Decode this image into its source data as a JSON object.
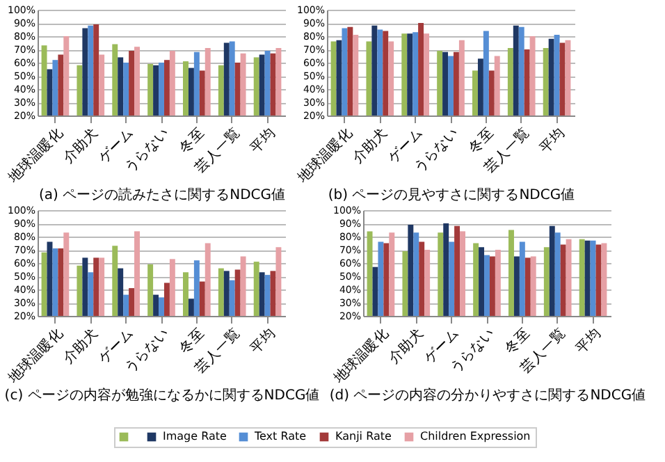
{
  "chart_data": [
    {
      "type": "bar",
      "xlabel": "(a) ページの読みたさに関するNDCG値",
      "categories": [
        "地球温暖化",
        "介助犬",
        "ゲーム",
        "うらない",
        "冬至",
        "芸人一覧",
        "平均"
      ],
      "series": [
        {
          "color": "#9bbb59",
          "values": [
            73,
            58,
            74,
            59,
            61,
            58,
            64
          ]
        },
        {
          "color": "#1f3864",
          "values": [
            55,
            86,
            64,
            58,
            56,
            75,
            66
          ]
        },
        {
          "color": "#558ed5",
          "values": [
            62,
            88,
            60,
            60,
            68,
            76,
            69
          ]
        },
        {
          "color": "#a33a3a",
          "values": [
            66,
            89,
            69,
            62,
            54,
            60,
            67
          ]
        },
        {
          "color": "#e6a0a5",
          "values": [
            80,
            66,
            72,
            69,
            71,
            67,
            71
          ]
        }
      ],
      "ylim": [
        20,
        100
      ],
      "yticks": [
        {
          "value": 20,
          "label": "20%"
        },
        {
          "value": 30,
          "label": "30%"
        },
        {
          "value": 40,
          "label": "40%"
        },
        {
          "value": 50,
          "label": "50%"
        },
        {
          "value": 60,
          "label": "60%"
        },
        {
          "value": 70,
          "label": "70%"
        },
        {
          "value": 80,
          "label": "80%"
        },
        {
          "value": 90,
          "label": "90%"
        },
        {
          "value": 100,
          "label": "100%"
        }
      ],
      "grid": "y"
    },
    {
      "type": "bar",
      "xlabel": "(b) ページの見やすさに関するNDCG値",
      "categories": [
        "地球温暖化",
        "介助犬",
        "ゲーム",
        "うらない",
        "冬至",
        "芸人一覧",
        "平均"
      ],
      "series": [
        {
          "color": "#9bbb59",
          "values": [
            76,
            76,
            82,
            69,
            54,
            71,
            71
          ]
        },
        {
          "color": "#1f3864",
          "values": [
            77,
            88,
            82,
            68,
            63,
            88,
            78
          ]
        },
        {
          "color": "#558ed5",
          "values": [
            86,
            85,
            83,
            65,
            84,
            87,
            81
          ]
        },
        {
          "color": "#a33a3a",
          "values": [
            87,
            84,
            90,
            68,
            54,
            70,
            75
          ]
        },
        {
          "color": "#e6a0a5",
          "values": [
            81,
            76,
            82,
            77,
            65,
            80,
            77
          ]
        }
      ],
      "ylim": [
        20,
        100
      ],
      "yticks": [
        {
          "value": 20,
          "label": "20%"
        },
        {
          "value": 30,
          "label": "30%"
        },
        {
          "value": 40,
          "label": "40%"
        },
        {
          "value": 50,
          "label": "50%"
        },
        {
          "value": 60,
          "label": "60%"
        },
        {
          "value": 70,
          "label": "70%"
        },
        {
          "value": 80,
          "label": "80%"
        },
        {
          "value": 90,
          "label": "90%"
        },
        {
          "value": 100,
          "label": "100%"
        }
      ],
      "grid": "y"
    },
    {
      "type": "bar",
      "xlabel": "(c) ページの内容が勉強になるかに関するNDCG値",
      "categories": [
        "地球温暖化",
        "介助犬",
        "ゲーム",
        "うらない",
        "冬至",
        "芸人一覧",
        "平均"
      ],
      "series": [
        {
          "color": "#9bbb59",
          "values": [
            68,
            58,
            73,
            59,
            53,
            56,
            61
          ]
        },
        {
          "color": "#1f3864",
          "values": [
            76,
            64,
            56,
            36,
            33,
            54,
            53
          ]
        },
        {
          "color": "#558ed5",
          "values": [
            71,
            53,
            36,
            34,
            62,
            47,
            51
          ]
        },
        {
          "color": "#a33a3a",
          "values": [
            71,
            64,
            41,
            45,
            46,
            55,
            54
          ]
        },
        {
          "color": "#e6a0a5",
          "values": [
            83,
            64,
            84,
            63,
            75,
            65,
            72
          ]
        }
      ],
      "ylim": [
        20,
        100
      ],
      "yticks": [
        {
          "value": 20,
          "label": "20%"
        },
        {
          "value": 30,
          "label": "30%"
        },
        {
          "value": 40,
          "label": "40%"
        },
        {
          "value": 50,
          "label": "50%"
        },
        {
          "value": 60,
          "label": "60%"
        },
        {
          "value": 70,
          "label": "70%"
        },
        {
          "value": 80,
          "label": "80%"
        },
        {
          "value": 90,
          "label": "90%"
        },
        {
          "value": 100,
          "label": "100%"
        }
      ],
      "grid": "y"
    },
    {
      "type": "bar",
      "xlabel": "(d) ページの内容の分かりやすさに関するNDCG値",
      "categories": [
        "地球温暖化",
        "介助犬",
        "ゲーム",
        "うらない",
        "冬至",
        "芸人一覧",
        "平均"
      ],
      "series": [
        {
          "color": "#9bbb59",
          "values": [
            84,
            69,
            83,
            75,
            85,
            72,
            78
          ]
        },
        {
          "name": "Image Rate",
          "color": "#1f3864",
          "values": [
            57,
            89,
            90,
            72,
            65,
            88,
            77
          ]
        },
        {
          "name": "Text Rate",
          "color": "#558ed5",
          "values": [
            76,
            83,
            76,
            66,
            76,
            83,
            77
          ]
        },
        {
          "name": "Kanji Rate",
          "color": "#a33a3a",
          "values": [
            75,
            76,
            88,
            65,
            64,
            74,
            74
          ]
        },
        {
          "name": "Children Expression",
          "color": "#e6a0a5",
          "values": [
            83,
            70,
            84,
            70,
            65,
            78,
            75
          ]
        }
      ],
      "ylim": [
        20,
        100
      ],
      "yticks": [
        {
          "value": 20,
          "label": "20%"
        },
        {
          "value": 30,
          "label": "30%"
        },
        {
          "value": 40,
          "label": "40%"
        },
        {
          "value": 50,
          "label": "50%"
        },
        {
          "value": 60,
          "label": "60%"
        },
        {
          "value": 70,
          "label": "70%"
        },
        {
          "value": 80,
          "label": "80%"
        },
        {
          "value": 90,
          "label": "90%"
        },
        {
          "value": 100,
          "label": "100%"
        }
      ],
      "grid": "y",
      "legend": "bottom"
    }
  ]
}
